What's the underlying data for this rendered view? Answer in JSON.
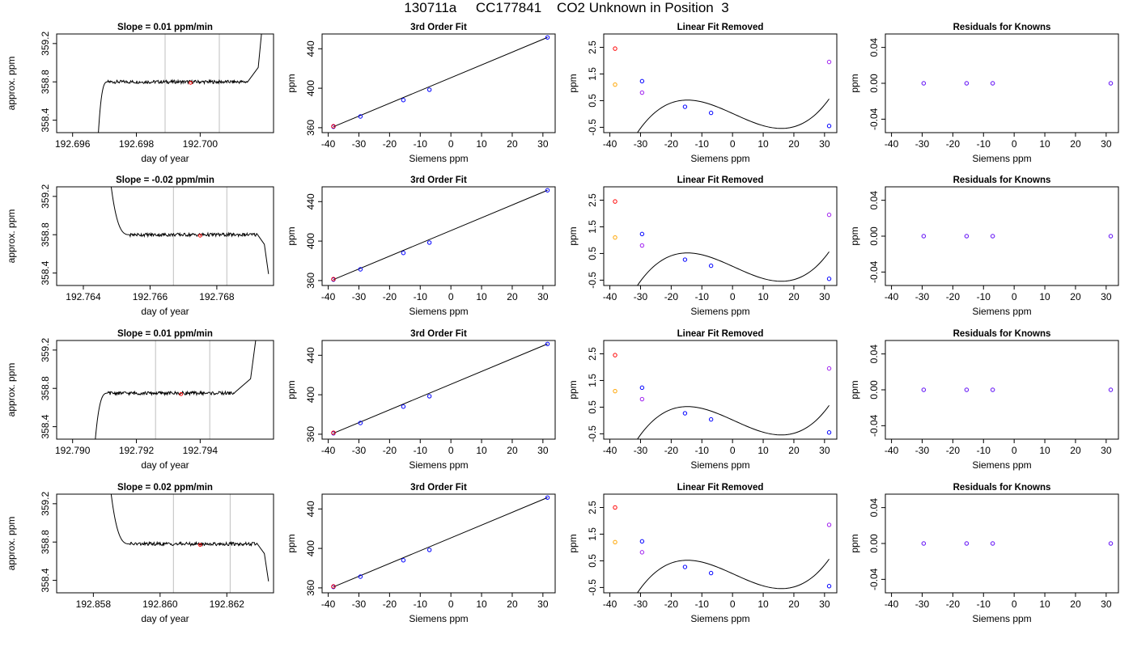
{
  "figure": {
    "title": "130711a     CC177841    CO2 Unknown in Position  3"
  },
  "colors": {
    "axis": "#000000",
    "line": "#000000",
    "gray_line": "#bfbfbf",
    "red": "#ff0000",
    "blue": "#0000ff",
    "orange": "#ffa500",
    "purple": "#a020f0"
  },
  "chart_data": [
    {
      "id": "r1-ts",
      "type": "line",
      "title": "Slope =  0.01  ppm/min",
      "xlabel": "day of year",
      "ylabel": "approx. ppm",
      "xlim": [
        192.6955,
        192.7023
      ],
      "ylim": [
        358.27,
        359.3
      ],
      "xticks": [
        192.696,
        192.698,
        192.7
      ],
      "xtick_labels": [
        "192.696",
        "192.698",
        "192.700"
      ],
      "yticks": [
        358.4,
        358.8,
        359.2
      ],
      "ytick_labels": [
        "358.4",
        "358.8",
        "359.2"
      ],
      "vlines": [
        192.6989,
        192.7006
      ],
      "marker": {
        "x": 192.6997,
        "y": 358.79
      },
      "profile": "rise_plateau_rise",
      "plateau": 358.8,
      "t_start": 192.6968,
      "t_settle": 192.6971,
      "t_end": 192.7015
    },
    {
      "id": "r1-fit",
      "type": "scatter_line",
      "title": "3rd Order Fit",
      "xlabel": "Siemens ppm",
      "ylabel": "ppm",
      "xlim": [
        -42,
        34
      ],
      "ylim": [
        355,
        455
      ],
      "xticks": [
        -40,
        -30,
        -20,
        -10,
        0,
        10,
        20,
        30
      ],
      "xtick_labels": [
        "-40",
        "-30",
        "-20",
        "-10",
        "0",
        "10",
        "20",
        "30"
      ],
      "yticks": [
        360,
        400,
        440
      ],
      "ytick_labels": [
        "360",
        "400",
        "440"
      ],
      "points": [
        [
          -38.3,
          361
        ],
        [
          -29.5,
          371.4
        ],
        [
          -15.5,
          388
        ],
        [
          -7,
          398.5
        ],
        [
          31.5,
          451.5
        ]
      ],
      "red_point": [
        -38.3,
        361.5
      ],
      "line": [
        [
          -38.3,
          361
        ],
        [
          31.5,
          451.5
        ]
      ]
    },
    {
      "id": "r1-lin",
      "type": "scatter_curve",
      "title": "Linear Fit Removed",
      "xlabel": "Siemens ppm",
      "ylabel": "ppm",
      "xlim": [
        -42,
        34
      ],
      "ylim": [
        -0.7,
        3.0
      ],
      "xticks": [
        -40,
        -30,
        -20,
        -10,
        0,
        10,
        20,
        30
      ],
      "xtick_labels": [
        "-40",
        "-30",
        "-20",
        "-10",
        "0",
        "10",
        "20",
        "30"
      ],
      "yticks": [
        -0.5,
        0.5,
        1.5,
        2.5
      ],
      "ytick_labels": [
        "-0.5",
        "0.5",
        "1.5",
        "2.5"
      ],
      "blue_points": [
        [
          -29.5,
          1.23
        ],
        [
          -15.5,
          0.27
        ],
        [
          -7,
          0.04
        ],
        [
          31.5,
          -0.45
        ]
      ],
      "red_point": [
        -38.3,
        2.45
      ],
      "orange_point": [
        -38.3,
        1.1
      ],
      "purple_points": [
        [
          -29.5,
          0.8
        ],
        [
          31.5,
          1.95
        ]
      ],
      "curve": {
        "a": 0.02,
        "b": -0.052,
        "c": -0.00013,
        "d": 7.4e-05,
        "x0": -39.5,
        "x1": 31.5
      }
    },
    {
      "id": "r1-res",
      "type": "scatter",
      "title": "Residuals for Knowns",
      "xlabel": "Siemens ppm",
      "ylabel": "ppm",
      "xlim": [
        -42,
        34
      ],
      "ylim": [
        -0.055,
        0.055
      ],
      "xticks": [
        -40,
        -30,
        -20,
        -10,
        0,
        10,
        20,
        30
      ],
      "xtick_labels": [
        "-40",
        "-30",
        "-20",
        "-10",
        "0",
        "10",
        "20",
        "30"
      ],
      "yticks": [
        -0.04,
        0.0,
        0.04
      ],
      "ytick_labels": [
        "-0.04",
        "0.00",
        "0.04"
      ],
      "points": [
        [
          -29.5,
          0
        ],
        [
          -15.5,
          0
        ],
        [
          -7,
          0
        ],
        [
          31.5,
          0
        ]
      ]
    },
    {
      "id": "r2-ts",
      "type": "line",
      "title": "Slope =  -0.02  ppm/min",
      "xlabel": "day of year",
      "ylabel": "approx. ppm",
      "xlim": [
        192.7632,
        192.7697
      ],
      "ylim": [
        358.27,
        359.3
      ],
      "xticks": [
        192.764,
        192.766,
        192.768
      ],
      "xtick_labels": [
        "192.764",
        "192.766",
        "192.768"
      ],
      "yticks": [
        358.4,
        358.8,
        359.2
      ],
      "ytick_labels": [
        "358.4",
        "358.8",
        "359.2"
      ],
      "vlines": [
        192.7667,
        192.7683
      ],
      "marker": {
        "x": 192.7675,
        "y": 358.79
      },
      "profile": "fall_plateau_fall",
      "plateau": 358.8,
      "t_start": 192.7648,
      "t_settle": 192.7654,
      "t_end": 192.7692
    },
    {
      "id": "r2-fit",
      "type": "scatter_line",
      "title": "3rd Order Fit",
      "xlabel": "Siemens ppm",
      "ylabel": "ppm",
      "xlim": [
        -42,
        34
      ],
      "ylim": [
        355,
        455
      ],
      "xticks": [
        -40,
        -30,
        -20,
        -10,
        0,
        10,
        20,
        30
      ],
      "xtick_labels": [
        "-40",
        "-30",
        "-20",
        "-10",
        "0",
        "10",
        "20",
        "30"
      ],
      "yticks": [
        360,
        400,
        440
      ],
      "ytick_labels": [
        "360",
        "400",
        "440"
      ],
      "points": [
        [
          -38.3,
          361
        ],
        [
          -29.5,
          371.4
        ],
        [
          -15.5,
          388
        ],
        [
          -7,
          398.5
        ],
        [
          31.5,
          451.5
        ]
      ],
      "red_point": [
        -38.3,
        361.5
      ],
      "line": [
        [
          -38.3,
          361
        ],
        [
          31.5,
          451.5
        ]
      ]
    },
    {
      "id": "r2-lin",
      "type": "scatter_curve",
      "title": "Linear Fit Removed",
      "xlabel": "Siemens ppm",
      "ylabel": "ppm",
      "xlim": [
        -42,
        34
      ],
      "ylim": [
        -0.7,
        3.0
      ],
      "xticks": [
        -40,
        -30,
        -20,
        -10,
        0,
        10,
        20,
        30
      ],
      "xtick_labels": [
        "-40",
        "-30",
        "-20",
        "-10",
        "0",
        "10",
        "20",
        "30"
      ],
      "yticks": [
        -0.5,
        0.5,
        1.5,
        2.5
      ],
      "ytick_labels": [
        "-0.5",
        "0.5",
        "1.5",
        "2.5"
      ],
      "blue_points": [
        [
          -29.5,
          1.23
        ],
        [
          -15.5,
          0.27
        ],
        [
          -7,
          0.04
        ],
        [
          31.5,
          -0.45
        ]
      ],
      "red_point": [
        -38.3,
        2.45
      ],
      "orange_point": [
        -38.3,
        1.1
      ],
      "purple_points": [
        [
          -29.5,
          0.8
        ],
        [
          31.5,
          1.95
        ]
      ],
      "curve": {
        "a": 0.02,
        "b": -0.052,
        "c": -0.00013,
        "d": 7.4e-05,
        "x0": -39.5,
        "x1": 31.5
      }
    },
    {
      "id": "r2-res",
      "type": "scatter",
      "title": "Residuals for Knowns",
      "xlabel": "Siemens ppm",
      "ylabel": "ppm",
      "xlim": [
        -42,
        34
      ],
      "ylim": [
        -0.055,
        0.055
      ],
      "xticks": [
        -40,
        -30,
        -20,
        -10,
        0,
        10,
        20,
        30
      ],
      "xtick_labels": [
        "-40",
        "-30",
        "-20",
        "-10",
        "0",
        "10",
        "20",
        "30"
      ],
      "yticks": [
        -0.04,
        0.0,
        0.04
      ],
      "ytick_labels": [
        "-0.04",
        "0.00",
        "0.04"
      ],
      "points": [
        [
          -29.5,
          0
        ],
        [
          -15.5,
          0
        ],
        [
          -7,
          0
        ],
        [
          31.5,
          0
        ]
      ]
    },
    {
      "id": "r3-ts",
      "type": "line",
      "title": "Slope =  0.01  ppm/min",
      "xlabel": "day of year",
      "ylabel": "approx. ppm",
      "xlim": [
        192.7895,
        192.7963
      ],
      "ylim": [
        358.27,
        359.3
      ],
      "xticks": [
        192.79,
        192.792,
        192.794
      ],
      "xtick_labels": [
        "192.790",
        "192.792",
        "192.794"
      ],
      "yticks": [
        358.4,
        358.8,
        359.2
      ],
      "ytick_labels": [
        "358.4",
        "358.8",
        "359.2"
      ],
      "vlines": [
        192.7926,
        192.7943
      ],
      "marker": {
        "x": 192.7934,
        "y": 358.74
      },
      "profile": "rise_plateau_rise",
      "plateau": 358.75,
      "t_start": 192.7907,
      "t_settle": 192.7911,
      "t_end": 192.7951
    },
    {
      "id": "r3-fit",
      "type": "scatter_line",
      "title": "3rd Order Fit",
      "xlabel": "Siemens ppm",
      "ylabel": "ppm",
      "xlim": [
        -42,
        34
      ],
      "ylim": [
        355,
        455
      ],
      "xticks": [
        -40,
        -30,
        -20,
        -10,
        0,
        10,
        20,
        30
      ],
      "xtick_labels": [
        "-40",
        "-30",
        "-20",
        "-10",
        "0",
        "10",
        "20",
        "30"
      ],
      "yticks": [
        360,
        400,
        440
      ],
      "ytick_labels": [
        "360",
        "400",
        "440"
      ],
      "points": [
        [
          -38.3,
          361
        ],
        [
          -29.5,
          371.4
        ],
        [
          -15.5,
          388
        ],
        [
          -7,
          398.5
        ],
        [
          31.5,
          451.5
        ]
      ],
      "red_point": [
        -38.3,
        361.5
      ],
      "line": [
        [
          -38.3,
          361
        ],
        [
          31.5,
          451.5
        ]
      ]
    },
    {
      "id": "r3-lin",
      "type": "scatter_curve",
      "title": "Linear Fit Removed",
      "xlabel": "Siemens ppm",
      "ylabel": "ppm",
      "xlim": [
        -42,
        34
      ],
      "ylim": [
        -0.7,
        3.0
      ],
      "xticks": [
        -40,
        -30,
        -20,
        -10,
        0,
        10,
        20,
        30
      ],
      "xtick_labels": [
        "-40",
        "-30",
        "-20",
        "-10",
        "0",
        "10",
        "20",
        "30"
      ],
      "yticks": [
        -0.5,
        0.5,
        1.5,
        2.5
      ],
      "ytick_labels": [
        "-0.5",
        "0.5",
        "1.5",
        "2.5"
      ],
      "blue_points": [
        [
          -29.5,
          1.23
        ],
        [
          -15.5,
          0.27
        ],
        [
          -7,
          0.04
        ],
        [
          31.5,
          -0.45
        ]
      ],
      "red_point": [
        -38.3,
        2.45
      ],
      "orange_point": [
        -38.3,
        1.1
      ],
      "purple_points": [
        [
          -29.5,
          0.8
        ],
        [
          31.5,
          1.95
        ]
      ],
      "curve": {
        "a": 0.02,
        "b": -0.052,
        "c": -0.00013,
        "d": 7.4e-05,
        "x0": -39.5,
        "x1": 31.5
      }
    },
    {
      "id": "r3-res",
      "type": "scatter",
      "title": "Residuals for Knowns",
      "xlabel": "Siemens ppm",
      "ylabel": "ppm",
      "xlim": [
        -42,
        34
      ],
      "ylim": [
        -0.055,
        0.055
      ],
      "xticks": [
        -40,
        -30,
        -20,
        -10,
        0,
        10,
        20,
        30
      ],
      "xtick_labels": [
        "-40",
        "-30",
        "-20",
        "-10",
        "0",
        "10",
        "20",
        "30"
      ],
      "yticks": [
        -0.04,
        0.0,
        0.04
      ],
      "ytick_labels": [
        "-0.04",
        "0.00",
        "0.04"
      ],
      "points": [
        [
          -29.5,
          0
        ],
        [
          -15.5,
          0
        ],
        [
          -7,
          0
        ],
        [
          31.5,
          0
        ]
      ]
    },
    {
      "id": "r4-ts",
      "type": "line",
      "title": "Slope =  0.02  ppm/min",
      "xlabel": "day of year",
      "ylabel": "approx. ppm",
      "xlim": [
        192.8569,
        192.8634
      ],
      "ylim": [
        358.27,
        359.3
      ],
      "xticks": [
        192.858,
        192.86,
        192.862
      ],
      "xtick_labels": [
        "192.858",
        "192.860",
        "192.862"
      ],
      "yticks": [
        358.4,
        358.8,
        359.2
      ],
      "ytick_labels": [
        "358.4",
        "358.8",
        "359.2"
      ],
      "vlines": [
        192.8604,
        192.8621
      ],
      "marker": {
        "x": 192.8612,
        "y": 358.77
      },
      "profile": "fall_plateau_fall",
      "plateau": 358.78,
      "t_start": 192.8585,
      "t_settle": 192.8591,
      "t_end": 192.8629
    },
    {
      "id": "r4-fit",
      "type": "scatter_line",
      "title": "3rd Order Fit",
      "xlabel": "Siemens ppm",
      "ylabel": "ppm",
      "xlim": [
        -42,
        34
      ],
      "ylim": [
        355,
        455
      ],
      "xticks": [
        -40,
        -30,
        -20,
        -10,
        0,
        10,
        20,
        30
      ],
      "xtick_labels": [
        "-40",
        "-30",
        "-20",
        "-10",
        "0",
        "10",
        "20",
        "30"
      ],
      "yticks": [
        360,
        400,
        440
      ],
      "ytick_labels": [
        "360",
        "400",
        "440"
      ],
      "points": [
        [
          -38.3,
          361
        ],
        [
          -29.5,
          371.4
        ],
        [
          -15.5,
          388
        ],
        [
          -7,
          398.5
        ],
        [
          31.5,
          451.5
        ]
      ],
      "red_point": [
        -38.3,
        361.5
      ],
      "line": [
        [
          -38.3,
          361
        ],
        [
          31.5,
          451.5
        ]
      ]
    },
    {
      "id": "r4-lin",
      "type": "scatter_curve",
      "title": "Linear Fit Removed",
      "xlabel": "Siemens ppm",
      "ylabel": "ppm",
      "xlim": [
        -42,
        34
      ],
      "ylim": [
        -0.7,
        3.0
      ],
      "xticks": [
        -40,
        -30,
        -20,
        -10,
        0,
        10,
        20,
        30
      ],
      "xtick_labels": [
        "-40",
        "-30",
        "-20",
        "-10",
        "0",
        "10",
        "20",
        "30"
      ],
      "yticks": [
        -0.5,
        0.5,
        1.5,
        2.5
      ],
      "ytick_labels": [
        "-0.5",
        "0.5",
        "1.5",
        "2.5"
      ],
      "blue_points": [
        [
          -29.5,
          1.23
        ],
        [
          -15.5,
          0.27
        ],
        [
          -7,
          0.04
        ],
        [
          31.5,
          -0.45
        ]
      ],
      "red_point": [
        -38.3,
        2.5
      ],
      "orange_point": [
        -38.3,
        1.2
      ],
      "purple_points": [
        [
          -29.5,
          0.82
        ],
        [
          31.5,
          1.85
        ]
      ],
      "curve": {
        "a": 0.02,
        "b": -0.052,
        "c": -0.00013,
        "d": 7.4e-05,
        "x0": -39.5,
        "x1": 31.5
      }
    },
    {
      "id": "r4-res",
      "type": "scatter",
      "title": "Residuals for Knowns",
      "xlabel": "Siemens ppm",
      "ylabel": "ppm",
      "xlim": [
        -42,
        34
      ],
      "ylim": [
        -0.055,
        0.055
      ],
      "xticks": [
        -40,
        -30,
        -20,
        -10,
        0,
        10,
        20,
        30
      ],
      "xtick_labels": [
        "-40",
        "-30",
        "-20",
        "-10",
        "0",
        "10",
        "20",
        "30"
      ],
      "yticks": [
        -0.04,
        0.0,
        0.04
      ],
      "ytick_labels": [
        "-0.04",
        "0.00",
        "0.04"
      ],
      "points": [
        [
          -29.5,
          0
        ],
        [
          -15.5,
          0
        ],
        [
          -7,
          0
        ],
        [
          31.5,
          0
        ]
      ]
    }
  ]
}
